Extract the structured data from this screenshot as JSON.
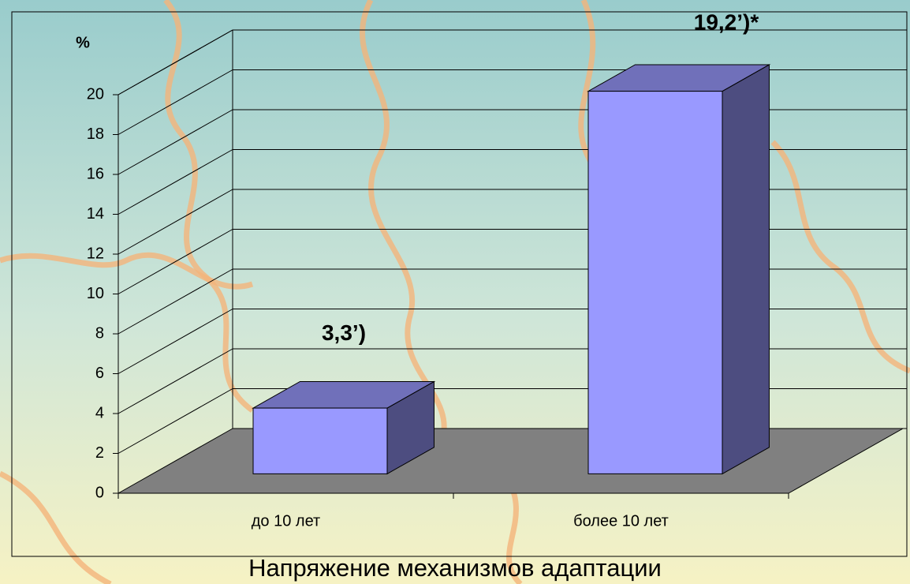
{
  "chart_data": {
    "type": "bar3d",
    "title": "Напряжение механизмов адаптации",
    "ylabel": "%",
    "categories": [
      "до 10 лет",
      "более 10 лет"
    ],
    "values": [
      3.3,
      19.2
    ],
    "value_labels": [
      "3,3’)",
      "19,2’)*"
    ],
    "color": "#9999ff",
    "floor_color": "#808080",
    "ylim": [
      0,
      20
    ],
    "yticks": [
      0,
      2,
      4,
      6,
      8,
      10,
      12,
      14,
      16,
      18,
      20
    ],
    "grid": true
  }
}
